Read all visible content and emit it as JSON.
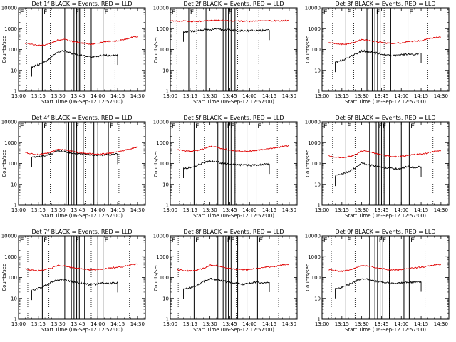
{
  "window": {
    "title": ""
  },
  "layout_rows": 3,
  "layout_cols": 3,
  "colors": {
    "events": "#000000",
    "lld": "#e00000",
    "frame": "#000000",
    "background": "#ffffff"
  },
  "shared": {
    "xlabel": "Start Time (06-Sep-12 12:57:00)",
    "ylabel": "Counts/sec",
    "x_ticks": [
      "13:00",
      "13:15",
      "13:30",
      "13:45",
      "14:00",
      "14:15",
      "14:30"
    ],
    "x_tick_minutes": [
      0,
      15,
      30,
      45,
      60,
      75,
      90
    ],
    "y_ticks": [
      "1",
      "10",
      "100",
      "1000",
      "10000"
    ],
    "y_scale": "log",
    "ylim": [
      1,
      10000
    ],
    "xlim_minutes": [
      0,
      96
    ],
    "x_origin_label": "13:00",
    "series_names": [
      "Events",
      "LLD"
    ]
  },
  "chart_data": [
    {
      "type": "line",
      "title": "Det 1f BLACK = Events, RED = LLD",
      "x_minutes": [
        0,
        5,
        10,
        15,
        20,
        25,
        30,
        35,
        40,
        45,
        50,
        55,
        60,
        65,
        70,
        75,
        80,
        85,
        90
      ],
      "series": [
        {
          "name": "Events",
          "values": [
            null,
            null,
            15,
            18,
            25,
            45,
            75,
            90,
            65,
            55,
            50,
            45,
            48,
            55,
            50,
            55,
            null,
            null,
            null
          ]
        },
        {
          "name": "LLD",
          "values": [
            null,
            200,
            180,
            160,
            165,
            200,
            290,
            300,
            250,
            220,
            200,
            180,
            200,
            240,
            250,
            260,
            300,
            380,
            420
          ]
        }
      ],
      "vlines_solid": [
        18,
        35,
        42,
        44,
        45,
        46,
        47,
        55,
        64
      ],
      "vlines_dotted": [
        6,
        24,
        50,
        73
      ],
      "annotations": [
        {
          "x": 1,
          "text": "E"
        },
        {
          "x": 19,
          "text": "F"
        },
        {
          "x": 43,
          "text": "F"
        },
        {
          "x": 65,
          "text": "E"
        }
      ]
    },
    {
      "type": "line",
      "title": "Det 2f BLACK = Events, RED = LLD",
      "x_minutes": [
        0,
        5,
        10,
        15,
        20,
        25,
        30,
        35,
        40,
        45,
        50,
        55,
        60,
        65,
        70,
        75,
        80,
        85,
        90
      ],
      "series": [
        {
          "name": "Events",
          "values": [
            null,
            null,
            700,
            750,
            800,
            850,
            900,
            950,
            900,
            850,
            800,
            800,
            800,
            820,
            830,
            850,
            null,
            null,
            null
          ]
        },
        {
          "name": "LLD",
          "values": [
            2300,
            2300,
            2300,
            2250,
            2250,
            2300,
            2400,
            2500,
            2450,
            2400,
            2350,
            2300,
            2250,
            2300,
            2350,
            2400,
            2400,
            2400,
            2400
          ]
        }
      ],
      "vlines_solid": [
        14,
        27,
        40,
        42,
        44,
        46,
        49,
        58
      ],
      "vlines_dotted": [
        5,
        20,
        51,
        67
      ],
      "annotations": [
        {
          "x": 1,
          "text": "E"
        },
        {
          "x": 15,
          "text": "F"
        },
        {
          "x": 44,
          "text": "E"
        }
      ]
    },
    {
      "type": "line",
      "title": "Det 3f BLACK = Events, RED = LLD",
      "x_minutes": [
        0,
        5,
        10,
        15,
        20,
        25,
        30,
        35,
        40,
        45,
        50,
        55,
        60,
        65,
        70,
        75,
        80,
        85,
        90
      ],
      "series": [
        {
          "name": "Events",
          "values": [
            null,
            null,
            25,
            30,
            40,
            60,
            85,
            80,
            70,
            60,
            55,
            50,
            55,
            60,
            55,
            65,
            null,
            null,
            null
          ]
        },
        {
          "name": "LLD",
          "values": [
            null,
            220,
            190,
            180,
            185,
            220,
            300,
            280,
            240,
            220,
            200,
            190,
            210,
            240,
            250,
            270,
            320,
            370,
            400
          ]
        }
      ],
      "vlines_solid": [
        18,
        34,
        38,
        40,
        42,
        44,
        52,
        65
      ],
      "vlines_dotted": [
        8,
        24,
        47,
        80
      ],
      "annotations": [
        {
          "x": 1,
          "text": "E"
        },
        {
          "x": 19,
          "text": "F"
        },
        {
          "x": 41,
          "text": "F"
        },
        {
          "x": 66,
          "text": "E"
        }
      ]
    },
    {
      "type": "line",
      "title": "Det 4f BLACK = Events, RED = LLD",
      "x_minutes": [
        0,
        5,
        10,
        15,
        20,
        25,
        30,
        35,
        40,
        45,
        50,
        55,
        60,
        65,
        70,
        75,
        80,
        85,
        90
      ],
      "series": [
        {
          "name": "Events",
          "values": [
            null,
            null,
            200,
            200,
            250,
            300,
            400,
            380,
            330,
            300,
            280,
            260,
            250,
            260,
            270,
            280,
            null,
            null,
            null
          ]
        },
        {
          "name": "LLD",
          "values": [
            null,
            330,
            290,
            270,
            300,
            360,
            480,
            450,
            380,
            340,
            310,
            290,
            280,
            290,
            320,
            360,
            420,
            520,
            600
          ]
        }
      ],
      "vlines_solid": [
        18,
        36,
        38,
        40,
        42,
        44,
        49,
        57,
        60,
        68
      ],
      "vlines_dotted": [
        4,
        24,
        51,
        76
      ],
      "annotations": [
        {
          "x": 1,
          "text": "E"
        },
        {
          "x": 19,
          "text": "F"
        },
        {
          "x": 43,
          "text": "F"
        },
        {
          "x": 69,
          "text": "E"
        }
      ]
    },
    {
      "type": "line",
      "title": "Det 5f BLACK = Events, RED = LLD",
      "x_minutes": [
        0,
        5,
        10,
        15,
        20,
        25,
        30,
        35,
        40,
        45,
        50,
        55,
        60,
        65,
        70,
        75,
        80,
        85,
        90
      ],
      "series": [
        {
          "name": "Events",
          "values": [
            null,
            null,
            60,
            65,
            80,
            110,
            130,
            120,
            100,
            95,
            90,
            85,
            80,
            85,
            90,
            95,
            null,
            null,
            null
          ]
        },
        {
          "name": "LLD",
          "values": [
            null,
            450,
            400,
            380,
            420,
            500,
            650,
            600,
            500,
            450,
            400,
            380,
            390,
            420,
            460,
            500,
            560,
            650,
            700
          ]
        }
      ],
      "vlines_solid": [
        18,
        36,
        40,
        42,
        44,
        46,
        49,
        58,
        65
      ],
      "vlines_dotted": [
        7,
        26,
        49,
        81
      ],
      "annotations": [
        {
          "x": 1,
          "text": "E"
        },
        {
          "x": 19,
          "text": "F"
        },
        {
          "x": 43,
          "text": "FF"
        },
        {
          "x": 66,
          "text": "E"
        }
      ]
    },
    {
      "type": "line",
      "title": "Det 6f BLACK = Events, RED = LLD",
      "x_minutes": [
        0,
        5,
        10,
        15,
        20,
        25,
        30,
        35,
        40,
        45,
        50,
        55,
        60,
        65,
        70,
        75,
        80,
        85,
        90
      ],
      "series": [
        {
          "name": "Events",
          "values": [
            null,
            null,
            25,
            30,
            40,
            60,
            100,
            90,
            75,
            65,
            60,
            55,
            60,
            70,
            65,
            70,
            null,
            null,
            null
          ]
        },
        {
          "name": "LLD",
          "values": [
            null,
            230,
            200,
            190,
            210,
            260,
            400,
            380,
            300,
            260,
            230,
            210,
            220,
            250,
            270,
            280,
            320,
            380,
            420
          ]
        }
      ],
      "vlines_solid": [
        18,
        36,
        41,
        43,
        45,
        47,
        51,
        60,
        66
      ],
      "vlines_dotted": [
        8,
        25,
        47,
        84
      ],
      "annotations": [
        {
          "x": 1,
          "text": "E"
        },
        {
          "x": 19,
          "text": "F"
        },
        {
          "x": 43,
          "text": "FF"
        },
        {
          "x": 67,
          "text": "E"
        }
      ]
    },
    {
      "type": "line",
      "title": "Det 7f BLACK = Events, RED = LLD",
      "x_minutes": [
        0,
        5,
        10,
        15,
        20,
        25,
        30,
        35,
        40,
        45,
        50,
        55,
        60,
        65,
        70,
        75,
        80,
        85,
        90
      ],
      "series": [
        {
          "name": "Events",
          "values": [
            null,
            null,
            25,
            30,
            40,
            60,
            80,
            75,
            65,
            55,
            50,
            45,
            50,
            55,
            52,
            58,
            null,
            null,
            null
          ]
        },
        {
          "name": "LLD",
          "values": [
            null,
            250,
            220,
            210,
            230,
            280,
            380,
            360,
            300,
            270,
            240,
            230,
            240,
            260,
            290,
            310,
            340,
            400,
            430
          ]
        }
      ],
      "vlines_solid": [
        18,
        35,
        40,
        42,
        44,
        46,
        50,
        60,
        64
      ],
      "vlines_dotted": [
        7,
        23,
        55,
        84
      ],
      "annotations": [
        {
          "x": 1,
          "text": "E"
        },
        {
          "x": 19,
          "text": "F"
        },
        {
          "x": 43,
          "text": "F"
        },
        {
          "x": 65,
          "text": "E"
        }
      ]
    },
    {
      "type": "line",
      "title": "Det 8f BLACK = Events, RED = LLD",
      "x_minutes": [
        0,
        5,
        10,
        15,
        20,
        25,
        30,
        35,
        40,
        45,
        50,
        55,
        60,
        65,
        70,
        75,
        80,
        85,
        90
      ],
      "series": [
        {
          "name": "Events",
          "values": [
            null,
            null,
            28,
            32,
            42,
            62,
            85,
            78,
            68,
            58,
            52,
            48,
            52,
            58,
            55,
            60,
            null,
            null,
            null
          ]
        },
        {
          "name": "LLD",
          "values": [
            null,
            240,
            215,
            205,
            225,
            275,
            390,
            370,
            310,
            275,
            245,
            235,
            245,
            265,
            295,
            315,
            345,
            400,
            425
          ]
        }
      ],
      "vlines_solid": [
        18,
        36,
        40,
        42,
        44,
        46,
        51,
        58,
        66
      ],
      "vlines_dotted": [
        6,
        24,
        50,
        82
      ],
      "annotations": [
        {
          "x": 1,
          "text": "E"
        },
        {
          "x": 19,
          "text": "F"
        },
        {
          "x": 43,
          "text": "FF"
        },
        {
          "x": 67,
          "text": "E"
        }
      ]
    },
    {
      "type": "line",
      "title": "Det 9f BLACK = Events, RED = LLD",
      "x_minutes": [
        0,
        5,
        10,
        15,
        20,
        25,
        30,
        35,
        40,
        45,
        50,
        55,
        60,
        65,
        70,
        75,
        80,
        85,
        90
      ],
      "series": [
        {
          "name": "Events",
          "values": [
            null,
            null,
            30,
            35,
            45,
            65,
            90,
            82,
            70,
            60,
            55,
            50,
            55,
            62,
            58,
            62,
            null,
            null,
            null
          ]
        },
        {
          "name": "LLD",
          "values": [
            null,
            240,
            210,
            200,
            220,
            270,
            380,
            360,
            300,
            270,
            240,
            230,
            240,
            260,
            290,
            310,
            340,
            400,
            430
          ]
        }
      ],
      "vlines_solid": [
        18,
        36,
        40,
        42,
        44,
        46,
        51,
        62,
        66
      ],
      "vlines_dotted": [
        7,
        25,
        51,
        78
      ],
      "annotations": [
        {
          "x": 1,
          "text": "E"
        },
        {
          "x": 19,
          "text": "F"
        },
        {
          "x": 43,
          "text": "FF"
        },
        {
          "x": 67,
          "text": "E"
        }
      ]
    }
  ]
}
